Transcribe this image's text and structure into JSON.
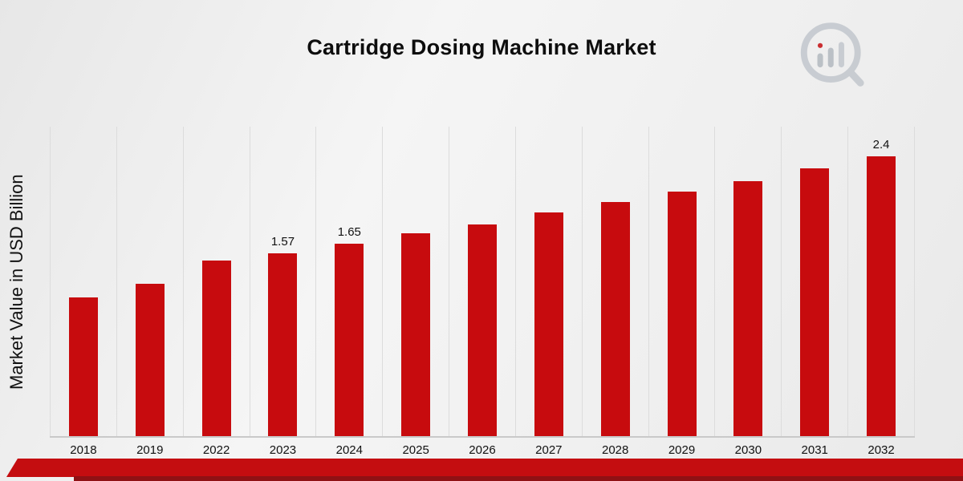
{
  "page": {
    "title": "Cartridge Dosing Machine Market"
  },
  "chart_data": {
    "type": "bar",
    "title": "Cartridge Dosing Machine Market",
    "xlabel": "",
    "ylabel": "Market Value in USD Billion",
    "categories": [
      "2018",
      "2019",
      "2022",
      "2023",
      "2024",
      "2025",
      "2026",
      "2027",
      "2028",
      "2029",
      "2030",
      "2031",
      "2032"
    ],
    "values": [
      1.19,
      1.31,
      1.51,
      1.57,
      1.65,
      1.74,
      1.82,
      1.92,
      2.01,
      2.1,
      2.19,
      2.3,
      2.4
    ],
    "data_labels": {
      "2023": "1.57",
      "2024": "1.65",
      "2032": "2.4"
    },
    "ylim": [
      0,
      2.67
    ],
    "grid": "vertical-only",
    "legend": "none",
    "bar_color": "#c70b0e"
  },
  "colors": {
    "accent_red": "#c70b0e",
    "ribbon_red": "#c40d10",
    "ribbon_dark_red": "#8f1114",
    "gridline": "#dcdcdc",
    "text": "#111111"
  },
  "branding": {
    "logo_icon": "magnifier-bar-chart-logo"
  }
}
